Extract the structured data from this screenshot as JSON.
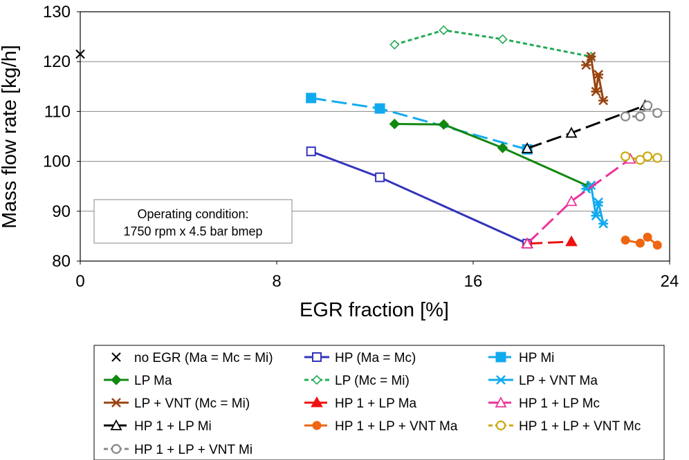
{
  "chart_data": {
    "type": "line",
    "xlabel": "EGR fraction [%]",
    "ylabel": "Mass flow rate [kg/h]",
    "xlim": [
      0,
      24
    ],
    "ylim": [
      80,
      130
    ],
    "xticks": [
      "0",
      "8",
      "16",
      "24"
    ],
    "yticks": [
      "80",
      "90",
      "100",
      "110",
      "120",
      "130"
    ],
    "grid": "horizontal",
    "annotation": [
      "Operating condition:",
      "1750 rpm x 4.5 bar bmep"
    ],
    "legend_position": "bottom",
    "series": [
      {
        "name": "no EGR (Ma = Mc = Mi)",
        "color": "#000000",
        "marker": "x",
        "dash": "none",
        "points": [
          [
            0.0,
            121.5
          ]
        ]
      },
      {
        "name": "HP (Ma = Mc)",
        "color": "#3333bb",
        "marker": "square-open",
        "dash": "solid",
        "points": [
          [
            9.4,
            102.0
          ],
          [
            12.2,
            96.8
          ],
          [
            18.2,
            83.5
          ]
        ]
      },
      {
        "name": "HP Mi",
        "color": "#11aaee",
        "marker": "square-filled",
        "dash": "long",
        "points": [
          [
            9.4,
            112.7
          ],
          [
            12.2,
            110.6
          ],
          [
            18.2,
            102.4
          ]
        ]
      },
      {
        "name": "LP Ma",
        "color": "#118811",
        "marker": "diamond-filled",
        "dash": "solid",
        "points": [
          [
            12.8,
            107.5
          ],
          [
            14.8,
            107.4
          ],
          [
            17.2,
            102.7
          ],
          [
            20.7,
            95.0
          ]
        ]
      },
      {
        "name": "LP (Mc = Mi)",
        "color": "#22aa55",
        "marker": "diamond-open",
        "dash": "short",
        "points": [
          [
            12.8,
            123.4
          ],
          [
            14.8,
            126.3
          ],
          [
            17.2,
            124.5
          ],
          [
            20.8,
            121.0
          ]
        ]
      },
      {
        "name": "LP + VNT Ma",
        "color": "#11aaee",
        "marker": "asterisk",
        "dash": "solid",
        "points": [
          [
            20.6,
            94.5
          ],
          [
            20.8,
            95.2
          ],
          [
            21.0,
            89.1
          ],
          [
            21.1,
            91.8
          ],
          [
            21.3,
            87.5
          ]
        ]
      },
      {
        "name": "LP + VNT (Mc = Mi)",
        "color": "#994411",
        "marker": "asterisk",
        "dash": "solid",
        "points": [
          [
            20.6,
            119.3
          ],
          [
            20.8,
            121.0
          ],
          [
            21.0,
            114.0
          ],
          [
            21.1,
            117.4
          ],
          [
            21.3,
            112.2
          ]
        ]
      },
      {
        "name": "HP 1 + LP Ma",
        "color": "#ee1111",
        "marker": "triangle-filled",
        "dash": "long",
        "points": [
          [
            18.2,
            83.5
          ],
          [
            20.0,
            83.9
          ]
        ]
      },
      {
        "name": "HP 1 + LP Mc",
        "color": "#ee3399",
        "marker": "triangle-open",
        "dash": "long",
        "points": [
          [
            18.2,
            83.5
          ],
          [
            20.0,
            92.0
          ],
          [
            22.4,
            100.5
          ]
        ]
      },
      {
        "name": "HP 1 + LP Mi",
        "color": "#000000",
        "marker": "triangle-open",
        "dash": "long",
        "points": [
          [
            18.2,
            102.6
          ],
          [
            20.0,
            105.7
          ],
          [
            23.0,
            111.2
          ]
        ]
      },
      {
        "name": "HP 1 + LP + VNT Ma",
        "color": "#ee6611",
        "marker": "circle-filled",
        "dash": "long",
        "points": [
          [
            22.2,
            84.2
          ],
          [
            22.8,
            83.6
          ],
          [
            23.1,
            84.8
          ],
          [
            23.5,
            83.2
          ]
        ]
      },
      {
        "name": "HP 1 + LP + VNT Mc",
        "color": "#ccaa11",
        "marker": "circle-open",
        "dash": "short",
        "points": [
          [
            22.2,
            101.0
          ],
          [
            22.8,
            100.3
          ],
          [
            23.1,
            101.0
          ],
          [
            23.5,
            100.7
          ]
        ]
      },
      {
        "name": "HP 1 + LP + VNT Mi",
        "color": "#888888",
        "marker": "circle-open",
        "dash": "short",
        "points": [
          [
            22.2,
            109.0
          ],
          [
            22.8,
            109.0
          ],
          [
            23.1,
            111.2
          ],
          [
            23.5,
            109.7
          ]
        ]
      }
    ]
  }
}
